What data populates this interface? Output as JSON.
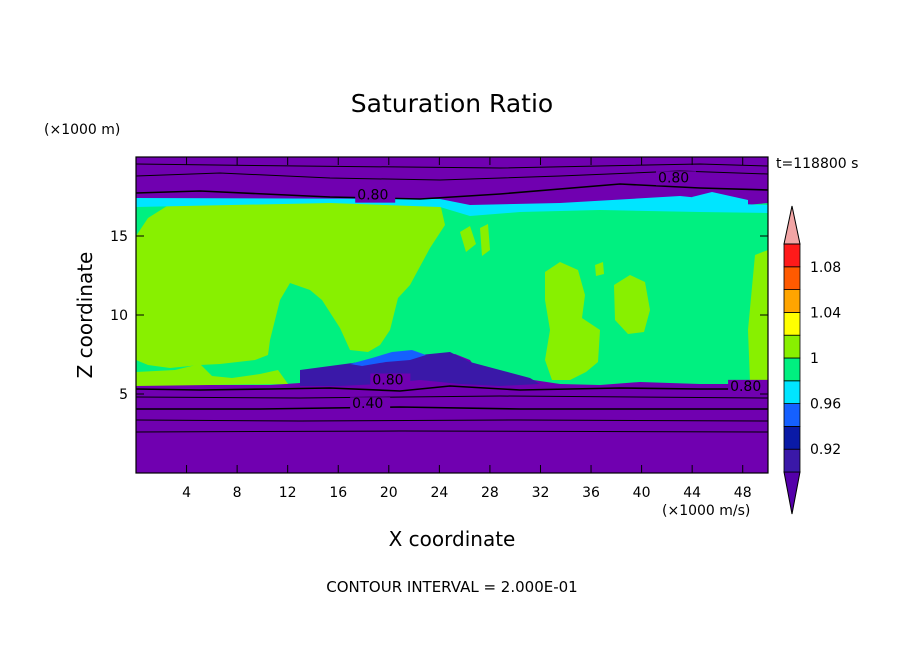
{
  "chart_data": {
    "type": "contour",
    "title": "Saturation Ratio",
    "time_label": "t=118800 s",
    "xlabel": "X coordinate",
    "ylabel": "Z coordinate",
    "x_unit": "(×1000 m/s)",
    "y_unit": "(×1000 m)",
    "xlim": [
      0,
      50
    ],
    "ylim": [
      0,
      20
    ],
    "x_ticks": [
      4,
      8,
      12,
      16,
      20,
      24,
      28,
      32,
      36,
      40,
      44,
      48
    ],
    "y_ticks": [
      5,
      10,
      15
    ],
    "footer": "CONTOUR INTERVAL = 2.000E-01",
    "contour_labels": [
      {
        "text": "0.80",
        "x": 17.5,
        "z": 17.3
      },
      {
        "text": "0.80",
        "x": 41.3,
        "z": 18.4
      },
      {
        "text": "0.80",
        "x": 18.7,
        "z": 5.6
      },
      {
        "text": "0.80",
        "x": 47.0,
        "z": 5.2
      },
      {
        "text": "0.40",
        "x": 17.1,
        "z": 4.1
      }
    ],
    "colorbar": {
      "levels": [
        0.9,
        0.92,
        0.94,
        0.96,
        0.98,
        1.0,
        1.02,
        1.04,
        1.06,
        1.08,
        1.1
      ],
      "tick_labels": [
        "0.92",
        "0.96",
        "1",
        "1.04",
        "1.08"
      ],
      "colors": [
        "#5500aa",
        "#3a18a8",
        "#0a1aa6",
        "#1560ff",
        "#00e5ff",
        "#00f080",
        "#88f000",
        "#ffff00",
        "#ffa500",
        "#ff5a00",
        "#ff1a1a",
        "#f2a5a5"
      ]
    },
    "colors": {
      "background_fill": "#7000b0",
      "subsaturated": "#00f080",
      "supersaturated": "#88f000",
      "ice_blue": "#00e5ff"
    }
  }
}
